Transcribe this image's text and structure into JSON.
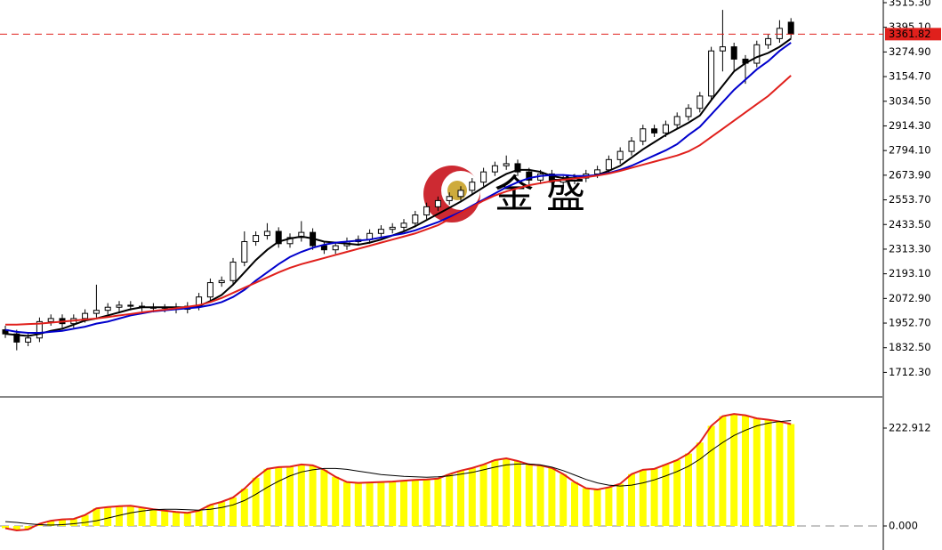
{
  "watermark": "金 盛",
  "chart_data": [
    {
      "type": "candlestick",
      "up_color": "#ffffff",
      "down_color": "#000000",
      "open": [
        1920,
        1900,
        1860,
        1880,
        1960,
        1975,
        1950,
        1975,
        2000,
        2015,
        2030,
        2040,
        2035,
        2030,
        2025,
        2030,
        2020,
        2035,
        2080,
        2150,
        2160,
        2250,
        2350,
        2380,
        2400,
        2340,
        2370,
        2395,
        2330,
        2310,
        2330,
        2350,
        2360,
        2390,
        2410,
        2420,
        2440,
        2480,
        2520,
        2550,
        2570,
        2600,
        2640,
        2690,
        2720,
        2730,
        2690,
        2650,
        2680,
        2640,
        2650,
        2660,
        2680,
        2700,
        2750,
        2790,
        2840,
        2900,
        2880,
        2920,
        2960,
        3000,
        3060,
        3280,
        3300,
        3240,
        3220,
        3310,
        3340,
        3420
      ],
      "high": [
        1940,
        1920,
        1900,
        1980,
        1995,
        1995,
        1995,
        2020,
        2140,
        2050,
        2060,
        2060,
        2055,
        2050,
        2045,
        2050,
        2055,
        2100,
        2170,
        2180,
        2270,
        2400,
        2400,
        2440,
        2420,
        2390,
        2450,
        2415,
        2350,
        2350,
        2370,
        2380,
        2410,
        2430,
        2440,
        2460,
        2500,
        2540,
        2570,
        2590,
        2620,
        2660,
        2710,
        2740,
        2770,
        2750,
        2710,
        2700,
        2700,
        2670,
        2680,
        2700,
        2720,
        2770,
        2810,
        2860,
        2920,
        2920,
        2940,
        2980,
        3020,
        3080,
        3300,
        3480,
        3320,
        3260,
        3330,
        3360,
        3430,
        3440
      ],
      "low": [
        1880,
        1820,
        1840,
        1860,
        1940,
        1930,
        1930,
        1955,
        1980,
        1995,
        2010,
        2015,
        2010,
        2005,
        2005,
        2000,
        2000,
        2015,
        2060,
        2130,
        2140,
        2230,
        2330,
        2360,
        2320,
        2320,
        2350,
        2310,
        2290,
        2290,
        2310,
        2330,
        2340,
        2370,
        2390,
        2400,
        2420,
        2460,
        2500,
        2530,
        2550,
        2580,
        2620,
        2670,
        2700,
        2670,
        2630,
        2630,
        2620,
        2620,
        2630,
        2640,
        2660,
        2680,
        2730,
        2770,
        2820,
        2860,
        2860,
        2900,
        2940,
        2980,
        3040,
        3180,
        3180,
        3120,
        3200,
        3290,
        3320,
        3340
      ],
      "close": [
        1900,
        1860,
        1880,
        1960,
        1975,
        1950,
        1975,
        2000,
        2015,
        2030,
        2040,
        2035,
        2030,
        2025,
        2030,
        2020,
        2035,
        2080,
        2150,
        2160,
        2250,
        2350,
        2380,
        2400,
        2340,
        2370,
        2395,
        2330,
        2310,
        2330,
        2350,
        2360,
        2390,
        2410,
        2420,
        2440,
        2480,
        2520,
        2550,
        2570,
        2600,
        2640,
        2690,
        2720,
        2730,
        2690,
        2650,
        2680,
        2640,
        2650,
        2660,
        2680,
        2700,
        2750,
        2790,
        2840,
        2900,
        2880,
        2920,
        2960,
        3000,
        3060,
        3280,
        3300,
        3240,
        3220,
        3310,
        3340,
        3390,
        3362
      ],
      "overlays": [
        {
          "color": "#000000",
          "values": [
            1900,
            1895,
            1890,
            1900,
            1915,
            1925,
            1945,
            1965,
            1975,
            1990,
            2005,
            2020,
            2030,
            2030,
            2030,
            2030,
            2030,
            2035,
            2060,
            2090,
            2140,
            2200,
            2260,
            2310,
            2350,
            2365,
            2375,
            2365,
            2350,
            2345,
            2340,
            2335,
            2345,
            2360,
            2380,
            2400,
            2425,
            2455,
            2485,
            2515,
            2545,
            2580,
            2615,
            2650,
            2680,
            2700,
            2700,
            2690,
            2670,
            2660,
            2660,
            2665,
            2675,
            2695,
            2720,
            2760,
            2800,
            2835,
            2870,
            2900,
            2930,
            2965,
            3040,
            3110,
            3180,
            3220,
            3250,
            3270,
            3300,
            3340
          ]
        },
        {
          "color": "#0000cc",
          "values": [
            1920,
            1910,
            1905,
            1905,
            1910,
            1915,
            1925,
            1935,
            1950,
            1960,
            1975,
            1990,
            2000,
            2010,
            2015,
            2020,
            2025,
            2030,
            2040,
            2055,
            2080,
            2115,
            2160,
            2200,
            2240,
            2275,
            2300,
            2320,
            2335,
            2345,
            2350,
            2355,
            2360,
            2370,
            2380,
            2390,
            2405,
            2425,
            2445,
            2470,
            2495,
            2525,
            2555,
            2585,
            2615,
            2640,
            2660,
            2670,
            2675,
            2675,
            2670,
            2670,
            2675,
            2685,
            2700,
            2720,
            2745,
            2770,
            2795,
            2825,
            2870,
            2910,
            2970,
            3030,
            3090,
            3140,
            3190,
            3230,
            3280,
            3320
          ]
        },
        {
          "color": "#e0201c",
          "values": [
            1945,
            1945,
            1948,
            1950,
            1955,
            1960,
            1965,
            1970,
            1975,
            1982,
            1990,
            1997,
            2005,
            2012,
            2018,
            2025,
            2032,
            2040,
            2055,
            2075,
            2100,
            2125,
            2150,
            2175,
            2200,
            2222,
            2240,
            2255,
            2270,
            2285,
            2300,
            2315,
            2330,
            2345,
            2360,
            2375,
            2390,
            2410,
            2430,
            2460,
            2490,
            2520,
            2550,
            2575,
            2595,
            2610,
            2625,
            2635,
            2645,
            2652,
            2658,
            2664,
            2672,
            2682,
            2695,
            2710,
            2725,
            2740,
            2755,
            2770,
            2790,
            2820,
            2860,
            2900,
            2940,
            2980,
            3020,
            3060,
            3110,
            3160
          ]
        }
      ],
      "last_price": 3361.82,
      "last_price_color": "#e0201c",
      "ylim": [
        1592.6,
        3528.3
      ],
      "yticks": [
        {
          "value": 3515.3,
          "label": "3515.30"
        },
        {
          "value": 3395.1,
          "label": "3395.10"
        },
        {
          "value": 3274.9,
          "label": "3274.90"
        },
        {
          "value": 3154.7,
          "label": "3154.70"
        },
        {
          "value": 3034.5,
          "label": "3034.50"
        },
        {
          "value": 2914.3,
          "label": "2914.30"
        },
        {
          "value": 2794.1,
          "label": "2794.10"
        },
        {
          "value": 2673.9,
          "label": "2673.90"
        },
        {
          "value": 2553.7,
          "label": "2553.70"
        },
        {
          "value": 2433.5,
          "label": "2433.50"
        },
        {
          "value": 2313.3,
          "label": "2313.30"
        },
        {
          "value": 2193.1,
          "label": "2193.10"
        },
        {
          "value": 2072.9,
          "label": "2072.90"
        },
        {
          "value": 1952.7,
          "label": "1952.70"
        },
        {
          "value": 1832.5,
          "label": "1832.50"
        },
        {
          "value": 1712.3,
          "label": "1712.30"
        }
      ]
    },
    {
      "type": "bar",
      "color": "#ffff00",
      "outline_color": "#e0201c",
      "values": [
        -5,
        -10,
        -8,
        5,
        12,
        15,
        16,
        25,
        40,
        43,
        45,
        46,
        42,
        38,
        35,
        32,
        30,
        35,
        48,
        55,
        65,
        85,
        110,
        130,
        134,
        135,
        140,
        138,
        128,
        112,
        100,
        98,
        99,
        100,
        101,
        103,
        105,
        106,
        108,
        118,
        126,
        132,
        140,
        150,
        154,
        148,
        140,
        138,
        132,
        118,
        100,
        86,
        83,
        88,
        96,
        118,
        128,
        130,
        140,
        150,
        165,
        190,
        228,
        250,
        255,
        252,
        245,
        242,
        238,
        232
      ],
      "signal": {
        "color": "#000000",
        "values": [
          10,
          8,
          5,
          3,
          2,
          3,
          5,
          8,
          12,
          18,
          24,
          30,
          34,
          37,
          38,
          38,
          37,
          36,
          38,
          42,
          48,
          58,
          72,
          88,
          102,
          114,
          123,
          128,
          131,
          131,
          129,
          125,
          121,
          117,
          115,
          113,
          112,
          111,
          112,
          114,
          118,
          122,
          128,
          134,
          139,
          141,
          141,
          139,
          134,
          126,
          116,
          106,
          98,
          93,
          91,
          93,
          98,
          105,
          114,
          124,
          136,
          152,
          172,
          190,
          206,
          218,
          228,
          234,
          238,
          240
        ]
      },
      "ylim": [
        -54.7,
        289.8
      ],
      "yticks": [
        222.912,
        {
          "value": 0,
          "label": "0.000"
        }
      ]
    }
  ]
}
